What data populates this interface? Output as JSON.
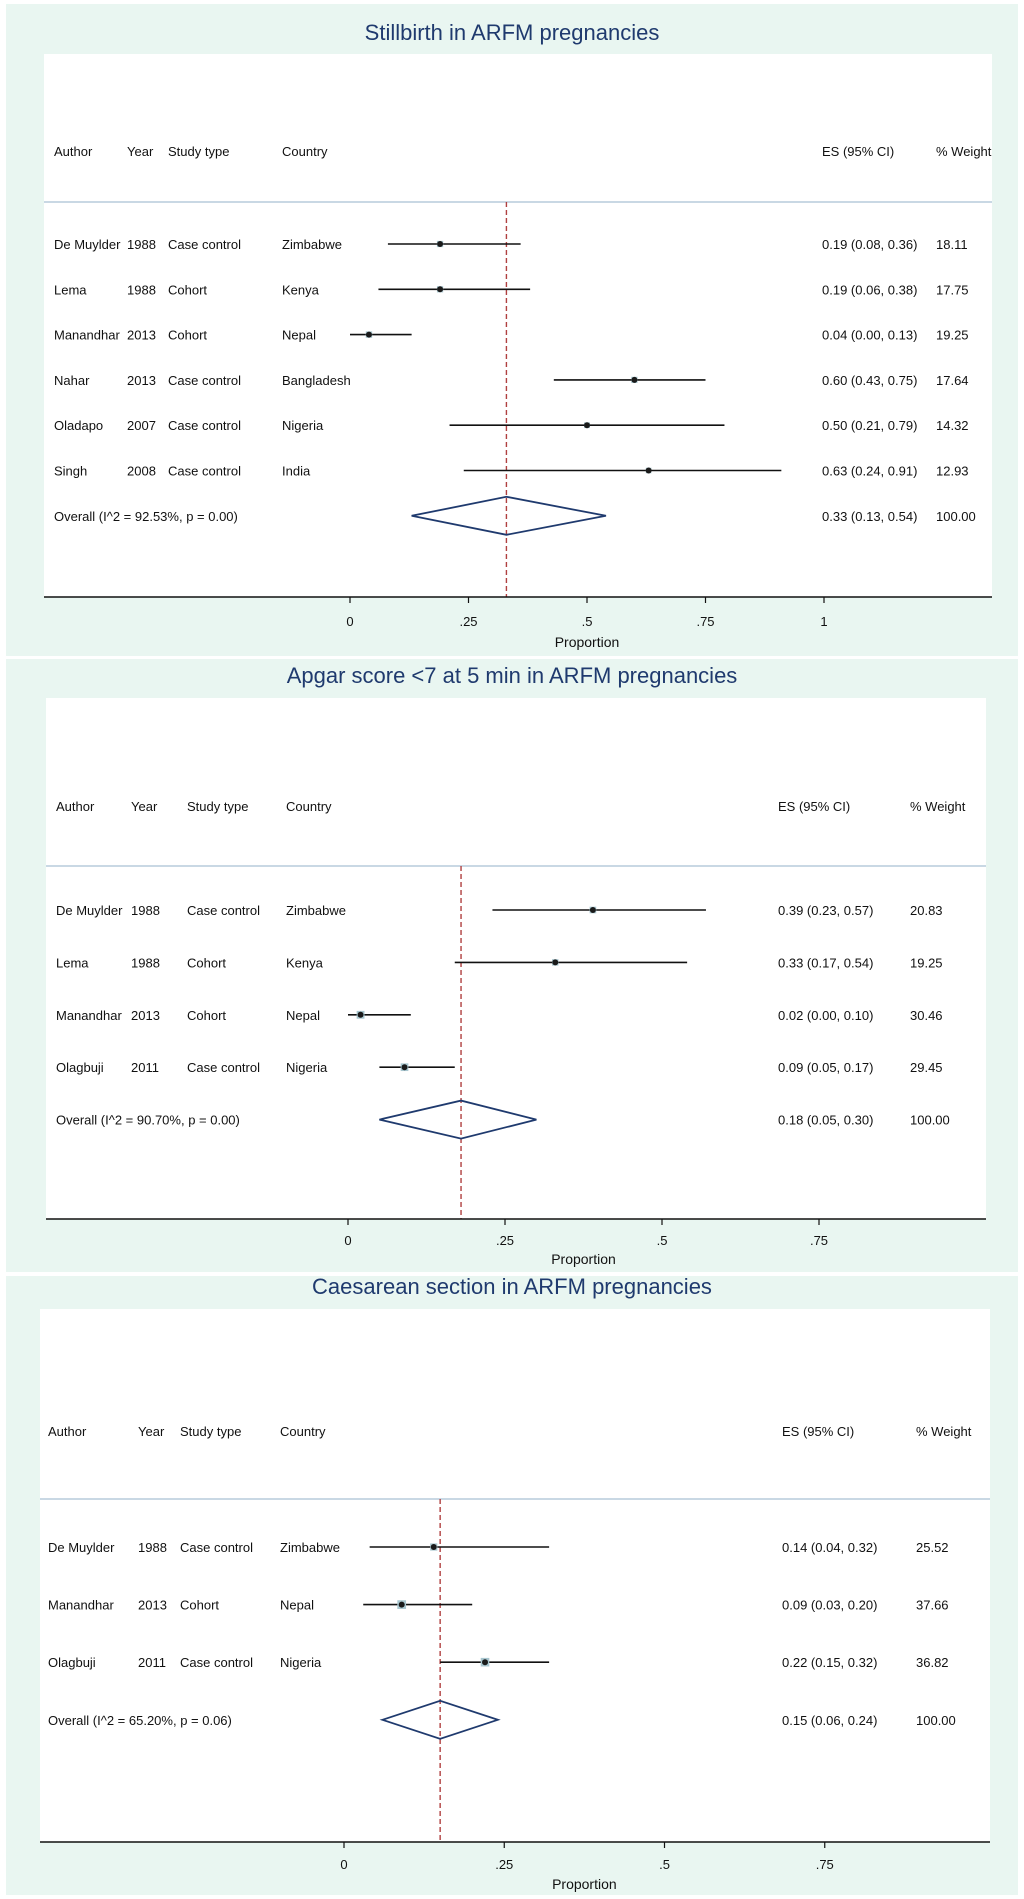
{
  "chart_data": [
    {
      "type": "forest",
      "title": "Stillbirth in ARFM pregnancies",
      "xlabel": "Proportion",
      "xticks": [
        "0",
        ".25",
        ".5",
        ".75",
        "1"
      ],
      "xlim": [
        0,
        1
      ],
      "headers": {
        "author": "Author",
        "year": "Year",
        "study": "Study type",
        "country": "Country",
        "es": "ES (95% CI)",
        "weight": "% Weight"
      },
      "studies": [
        {
          "author": "De Muylder",
          "year": "1988",
          "study": "Case control",
          "country": "Zimbabwe",
          "es": 0.19,
          "lo": 0.08,
          "hi": 0.36,
          "es_text": "0.19 (0.08, 0.36)",
          "weight": "18.11"
        },
        {
          "author": "Lema",
          "year": "1988",
          "study": "Cohort",
          "country": "Kenya",
          "es": 0.19,
          "lo": 0.06,
          "hi": 0.38,
          "es_text": "0.19 (0.06, 0.38)",
          "weight": "17.75"
        },
        {
          "author": "Manandhar",
          "year": "2013",
          "study": "Cohort",
          "country": "Nepal",
          "es": 0.04,
          "lo": 0.0,
          "hi": 0.13,
          "es_text": "0.04 (0.00, 0.13)",
          "weight": "19.25"
        },
        {
          "author": "Nahar",
          "year": "2013",
          "study": "Case control",
          "country": "Bangladesh",
          "es": 0.6,
          "lo": 0.43,
          "hi": 0.75,
          "es_text": "0.60 (0.43, 0.75)",
          "weight": "17.64"
        },
        {
          "author": "Oladapo",
          "year": "2007",
          "study": "Case control",
          "country": "Nigeria",
          "es": 0.5,
          "lo": 0.21,
          "hi": 0.79,
          "es_text": "0.50 (0.21, 0.79)",
          "weight": "14.32"
        },
        {
          "author": "Singh",
          "year": "2008",
          "study": "Case control",
          "country": "India",
          "es": 0.63,
          "lo": 0.24,
          "hi": 0.91,
          "es_text": "0.63 (0.24, 0.91)",
          "weight": "12.93"
        }
      ],
      "overall": {
        "label": "Overall  (I^2 = 92.53%, p = 0.00)",
        "es": 0.33,
        "lo": 0.13,
        "hi": 0.54,
        "es_text": "0.33 (0.13, 0.54)",
        "weight": "100.00"
      }
    },
    {
      "type": "forest",
      "title": "Apgar score <7 at 5 min in ARFM pregnancies",
      "xlabel": "Proportion",
      "xticks": [
        "0",
        ".25",
        ".5",
        ".75"
      ],
      "xlim": [
        0,
        0.75
      ],
      "headers": {
        "author": "Author",
        "year": "Year",
        "study": "Study type",
        "country": "Country",
        "es": "ES (95% CI)",
        "weight": "% Weight"
      },
      "studies": [
        {
          "author": "De Muylder",
          "year": "1988",
          "study": "Case control",
          "country": "Zimbabwe",
          "es": 0.39,
          "lo": 0.23,
          "hi": 0.57,
          "es_text": "0.39 (0.23, 0.57)",
          "weight": "20.83"
        },
        {
          "author": "Lema",
          "year": "1988",
          "study": "Cohort",
          "country": "Kenya",
          "es": 0.33,
          "lo": 0.17,
          "hi": 0.54,
          "es_text": "0.33 (0.17, 0.54)",
          "weight": "19.25"
        },
        {
          "author": "Manandhar",
          "year": "2013",
          "study": "Cohort",
          "country": "Nepal",
          "es": 0.02,
          "lo": 0.0,
          "hi": 0.1,
          "es_text": "0.02 (0.00, 0.10)",
          "weight": "30.46"
        },
        {
          "author": "Olagbuji",
          "year": "2011",
          "study": "Case control",
          "country": "Nigeria",
          "es": 0.09,
          "lo": 0.05,
          "hi": 0.17,
          "es_text": "0.09 (0.05, 0.17)",
          "weight": "29.45"
        }
      ],
      "overall": {
        "label": "Overall  (I^2 = 90.70%, p = 0.00)",
        "es": 0.18,
        "lo": 0.05,
        "hi": 0.3,
        "es_text": "0.18 (0.05, 0.30)",
        "weight": "100.00"
      }
    },
    {
      "type": "forest",
      "title": "Caesarean section in ARFM pregnancies",
      "xlabel": "Proportion",
      "xticks": [
        "0",
        ".25",
        ".5",
        ".75"
      ],
      "xlim": [
        0,
        0.75
      ],
      "headers": {
        "author": "Author",
        "year": "Year",
        "study": "Study type",
        "country": "Country",
        "es": "ES (95% CI)",
        "weight": "% Weight"
      },
      "studies": [
        {
          "author": "De Muylder",
          "year": "1988",
          "study": "Case control",
          "country": "Zimbabwe",
          "es": 0.14,
          "lo": 0.04,
          "hi": 0.32,
          "es_text": "0.14 (0.04, 0.32)",
          "weight": "25.52"
        },
        {
          "author": "Manandhar",
          "year": "2013",
          "study": "Cohort",
          "country": "Nepal",
          "es": 0.09,
          "lo": 0.03,
          "hi": 0.2,
          "es_text": "0.09 (0.03, 0.20)",
          "weight": "37.66"
        },
        {
          "author": "Olagbuji",
          "year": "2011",
          "study": "Case control",
          "country": "Nigeria",
          "es": 0.22,
          "lo": 0.15,
          "hi": 0.32,
          "es_text": "0.22 (0.15, 0.32)",
          "weight": "36.82"
        }
      ],
      "overall": {
        "label": "Overall  (I^2 = 65.20%, p = 0.06)",
        "es": 0.15,
        "lo": 0.06,
        "hi": 0.24,
        "es_text": "0.15 (0.06, 0.24)",
        "weight": "100.00"
      }
    }
  ],
  "colors": {
    "outer_bg": "#e9f6f1",
    "plot_bg": "#ffffff",
    "title": "#1f3a6e",
    "ci_line": "#111111",
    "marker": "#1a1a1a",
    "weight_box": "#a8c6cf",
    "diamond": "#1f3a6e",
    "reference_line": "#b04040"
  }
}
